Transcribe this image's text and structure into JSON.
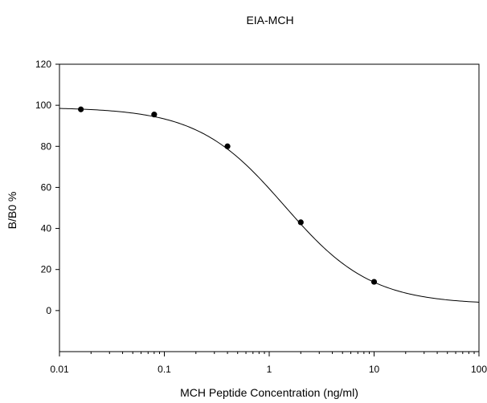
{
  "chart_data": {
    "type": "scatter",
    "title": "EIA-MCH",
    "xlabel": "MCH Peptide Concentration (ng/ml)",
    "ylabel": "B/B0 %",
    "x_scale": "log",
    "xlim": [
      0.01,
      100
    ],
    "ylim": [
      -20,
      120
    ],
    "x_ticks": [
      0.01,
      0.1,
      1,
      10,
      100
    ],
    "x_tick_labels": [
      "0.01",
      "0.1",
      "1",
      "10",
      "100"
    ],
    "y_ticks": [
      0,
      20,
      40,
      60,
      80,
      100,
      120
    ],
    "y_tick_labels": [
      "0",
      "20",
      "40",
      "60",
      "80",
      "100",
      "120"
    ],
    "grid": false,
    "legend": "none",
    "series": [
      {
        "points": [
          {
            "x": 0.016,
            "y": 98
          },
          {
            "x": 0.08,
            "y": 95.5
          },
          {
            "x": 0.4,
            "y": 80
          },
          {
            "x": 2,
            "y": 43
          },
          {
            "x": 10,
            "y": 14
          }
        ],
        "marker_color": "#000000"
      }
    ],
    "fit_curve": {
      "model": "four-parameter logistic",
      "top": 99,
      "bottom": 3,
      "ec50": 1.4,
      "hill": 1.05,
      "color": "#000000"
    }
  }
}
